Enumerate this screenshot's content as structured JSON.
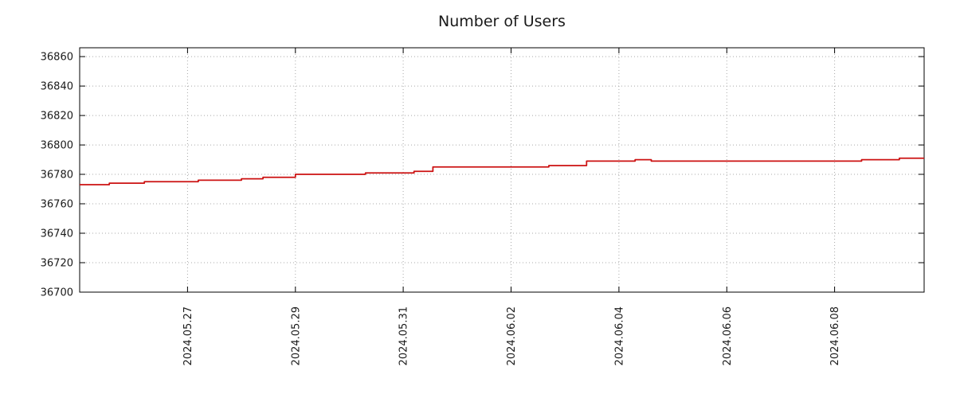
{
  "chart_data": {
    "type": "line",
    "title": "Number of Users",
    "xlabel": "",
    "ylabel": "",
    "grid": true,
    "legend": false,
    "background": "#ffffff",
    "frame_color": "#000000",
    "grid_color": "#a8a8a8",
    "text_color": "#1a1a1a",
    "x_axis": {
      "tick_labels": [
        "2024.05.27",
        "2024.05.29",
        "2024.05.31",
        "2024.06.02",
        "2024.06.04",
        "2024.06.06",
        "2024.06.08"
      ],
      "tick_positions_days": [
        2,
        4,
        6,
        8,
        10,
        12,
        14
      ],
      "origin_date": "2024.05.25",
      "range_days": [
        0,
        15.66
      ]
    },
    "y_axis": {
      "tick_labels": [
        "36700",
        "36720",
        "36740",
        "36760",
        "36780",
        "36800",
        "36820",
        "36840",
        "36860"
      ],
      "tick_values": [
        36700,
        36720,
        36740,
        36760,
        36780,
        36800,
        36820,
        36840,
        36860
      ],
      "range": [
        36700,
        36866
      ]
    },
    "series": [
      {
        "name": "Number of Users",
        "color": "#cc1111",
        "line_width": 1.75,
        "style": "step-after",
        "points_days_value": [
          [
            0.0,
            36773
          ],
          [
            0.55,
            36774
          ],
          [
            1.2,
            36775
          ],
          [
            2.2,
            36776
          ],
          [
            3.0,
            36777
          ],
          [
            3.4,
            36778
          ],
          [
            4.0,
            36780
          ],
          [
            5.3,
            36781
          ],
          [
            6.2,
            36782
          ],
          [
            6.55,
            36785
          ],
          [
            8.7,
            36786
          ],
          [
            9.4,
            36789
          ],
          [
            10.3,
            36790
          ],
          [
            10.6,
            36789
          ],
          [
            14.5,
            36790
          ],
          [
            15.2,
            36791
          ]
        ]
      }
    ]
  }
}
